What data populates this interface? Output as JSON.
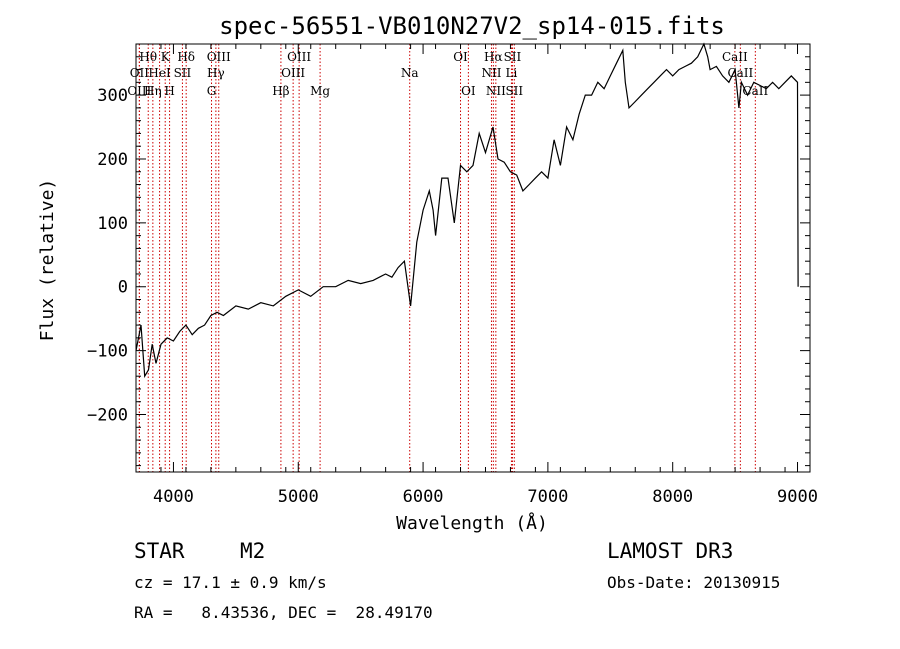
{
  "chart_data": {
    "type": "line",
    "title": "spec-56551-VB010N27V2_sp14-015.fits",
    "xlabel": "Wavelength (Å)",
    "ylabel": "Flux (relative)",
    "xlim": [
      3700,
      9100
    ],
    "ylim": [
      -290,
      380
    ],
    "xticks": [
      4000,
      5000,
      6000,
      7000,
      8000,
      9000
    ],
    "yticks": [
      -200,
      -100,
      0,
      100,
      200,
      300
    ],
    "series": [
      {
        "name": "flux",
        "x": [
          3700,
          3740,
          3770,
          3800,
          3830,
          3860,
          3900,
          3950,
          4000,
          4050,
          4100,
          4150,
          4200,
          4250,
          4300,
          4350,
          4400,
          4500,
          4600,
          4700,
          4800,
          4900,
          5000,
          5100,
          5200,
          5300,
          5400,
          5500,
          5600,
          5700,
          5750,
          5800,
          5850,
          5900,
          5950,
          6000,
          6050,
          6080,
          6100,
          6150,
          6200,
          6250,
          6300,
          6350,
          6400,
          6450,
          6500,
          6560,
          6600,
          6650,
          6700,
          6750,
          6800,
          6850,
          6900,
          6950,
          7000,
          7050,
          7100,
          7150,
          7200,
          7250,
          7300,
          7350,
          7400,
          7450,
          7500,
          7550,
          7600,
          7620,
          7650,
          7700,
          7750,
          7800,
          7850,
          7900,
          7950,
          8000,
          8050,
          8100,
          8150,
          8200,
          8250,
          8280,
          8300,
          8350,
          8400,
          8450,
          8500,
          8530,
          8550,
          8600,
          8650,
          8700,
          8750,
          8800,
          8850,
          8900,
          8950,
          9000,
          9005
        ],
        "y": [
          -100,
          -60,
          -140,
          -130,
          -90,
          -120,
          -90,
          -80,
          -85,
          -70,
          -60,
          -75,
          -65,
          -60,
          -45,
          -40,
          -45,
          -30,
          -35,
          -25,
          -30,
          -15,
          -5,
          -15,
          0,
          0,
          10,
          5,
          10,
          20,
          15,
          30,
          40,
          -30,
          70,
          120,
          150,
          120,
          80,
          170,
          170,
          100,
          190,
          180,
          190,
          240,
          210,
          250,
          200,
          195,
          180,
          175,
          150,
          160,
          170,
          180,
          170,
          230,
          190,
          250,
          230,
          270,
          300,
          300,
          320,
          310,
          330,
          350,
          370,
          320,
          280,
          290,
          300,
          310,
          320,
          330,
          340,
          330,
          340,
          345,
          350,
          360,
          380,
          360,
          340,
          345,
          330,
          320,
          340,
          280,
          320,
          300,
          320,
          315,
          310,
          320,
          310,
          320,
          330,
          320,
          0
        ]
      }
    ],
    "lines": [
      {
        "name": "Hθ",
        "x": 3798,
        "row": 1
      },
      {
        "name": "OII",
        "x": 3727,
        "row": 2
      },
      {
        "name": "OIII",
        "x": 3727,
        "row": 3
      },
      {
        "name": "Hη",
        "x": 3835,
        "row": 3
      },
      {
        "name": "K",
        "x": 3934,
        "row": 1
      },
      {
        "name": "HeI",
        "x": 3889,
        "row": 2
      },
      {
        "name": "H",
        "x": 3969,
        "row": 3
      },
      {
        "name": "SII",
        "x": 4072,
        "row": 2
      },
      {
        "name": "Hδ",
        "x": 4102,
        "row": 1
      },
      {
        "name": "OIII",
        "x": 4363,
        "row": 1
      },
      {
        "name": "Hγ",
        "x": 4340,
        "row": 2
      },
      {
        "name": "G",
        "x": 4305,
        "row": 3
      },
      {
        "name": "Hβ",
        "x": 4861,
        "row": 3
      },
      {
        "name": "OIII",
        "x": 4959,
        "row": 2
      },
      {
        "name": "OIII",
        "x": 5007,
        "row": 1
      },
      {
        "name": "Mg",
        "x": 5175,
        "row": 3
      },
      {
        "name": "Na",
        "x": 5893,
        "row": 2
      },
      {
        "name": "OI",
        "x": 6300,
        "row": 1
      },
      {
        "name": "OI",
        "x": 6363,
        "row": 3
      },
      {
        "name": "Hα",
        "x": 6563,
        "row": 1
      },
      {
        "name": "NII",
        "x": 6548,
        "row": 2
      },
      {
        "name": "NII",
        "x": 6583,
        "row": 3
      },
      {
        "name": "SII",
        "x": 6716,
        "row": 1
      },
      {
        "name": "Li",
        "x": 6708,
        "row": 2
      },
      {
        "name": "SII",
        "x": 6731,
        "row": 3
      },
      {
        "name": "CaII",
        "x": 8498,
        "row": 1
      },
      {
        "name": "CaII",
        "x": 8542,
        "row": 2
      },
      {
        "name": "CaII",
        "x": 8662,
        "row": 3
      }
    ]
  },
  "info": {
    "object_class": "STAR",
    "subclass": "M2",
    "survey": "LAMOST DR3",
    "redshift": "cz = 17.1 ± 0.9 km/s",
    "obs_date": "Obs-Date: 20130915",
    "coords": "RA =   8.43536, DEC =  28.49170"
  }
}
